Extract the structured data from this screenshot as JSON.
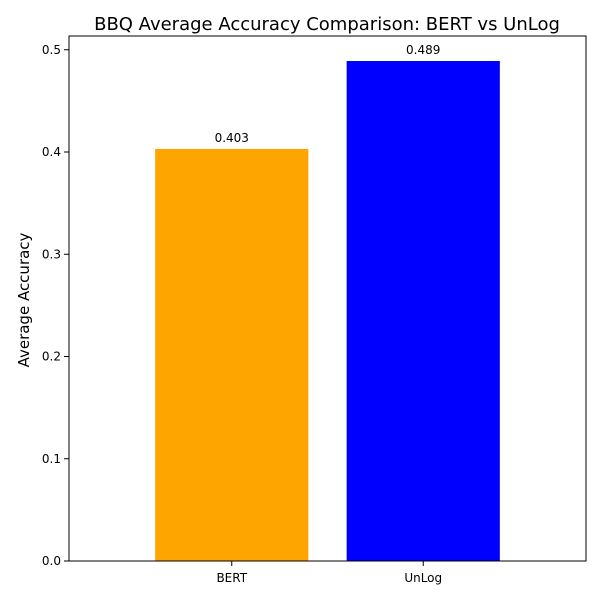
{
  "chart_data": {
    "type": "bar",
    "title": "BBQ Average Accuracy Comparison: BERT vs UnLog",
    "xlabel": "",
    "ylabel": "Average Accuracy",
    "categories": [
      "BERT",
      "UnLog"
    ],
    "values": [
      0.403,
      0.489
    ],
    "value_labels": [
      "0.403",
      "0.489"
    ],
    "colors": [
      "#FFA500",
      "#0000FF"
    ],
    "ylim": [
      0,
      0.51345
    ],
    "yticks": [
      0.0,
      0.1,
      0.2,
      0.3,
      0.4,
      0.5
    ],
    "ytick_labels": [
      "0.0",
      "0.1",
      "0.2",
      "0.3",
      "0.4",
      "0.5"
    ],
    "grid": false,
    "legend": "none"
  }
}
